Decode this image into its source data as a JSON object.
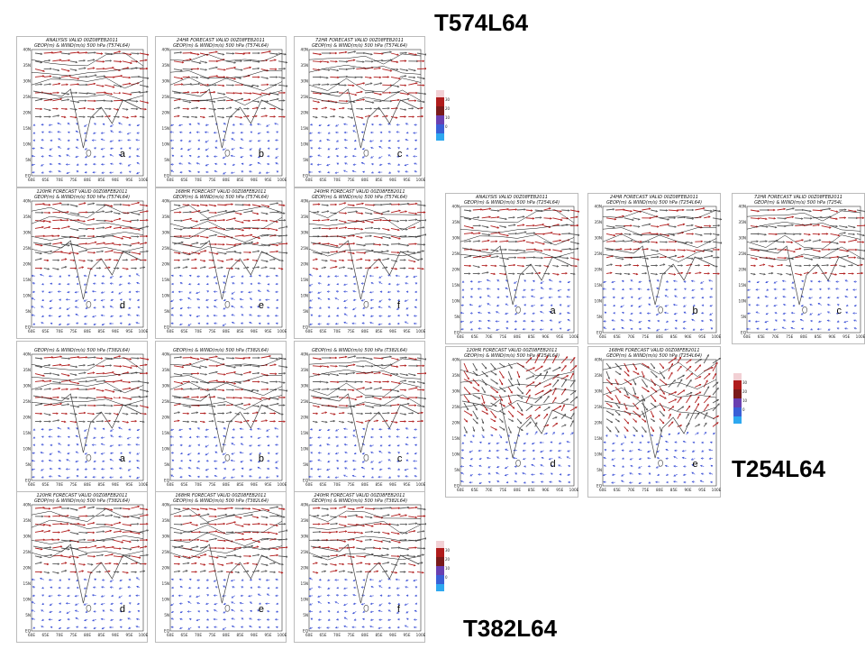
{
  "groups": {
    "t574": {
      "title": "T574L64",
      "panels": [
        {
          "title1": "ANALYSIS VALID 00Z08FEB2011",
          "title2": "GEOP(m) & WIND(m/s) 500 hPa (T574L64)",
          "label": "a"
        },
        {
          "title1": "24HR FORECAST VALID 00Z08FEB2011",
          "title2": "GEOP(m) & WIND(m/s) 500 hPa (T574L64)",
          "label": "b"
        },
        {
          "title1": "72HR FORECAST VALID 00Z08FEB2011",
          "title2": "GEOP(m) & WIND(m/s) 500 hPa (T574L64)",
          "label": "c"
        },
        {
          "title1": "120HR FORECAST VALID 00Z08FEB2011",
          "title2": "GEOP(m) & WIND(m/s) 500 hPa (T574L64)",
          "label": "d"
        },
        {
          "title1": "168HR FORECAST VALID 00Z08FEB2011",
          "title2": "GEOP(m) & WIND(m/s) 500 hPa (T574L64)",
          "label": "e"
        },
        {
          "title1": "240HR FORECAST VALID 00Z08FEB2011",
          "title2": "GEOP(m) & WIND(m/s) 500 hPa (T574L64)",
          "label": "f"
        }
      ]
    },
    "t382": {
      "title": "T382L64",
      "panels": [
        {
          "title1": "",
          "title2": "GEOP(m) & WIND(m/s) 500 hPa (T382L64)",
          "label": "a"
        },
        {
          "title1": "",
          "title2": "GEOP(m) & WIND(m/s) 500 hPa (T382L64)",
          "label": "b"
        },
        {
          "title1": "",
          "title2": "GEOP(m) & WIND(m/s) 500 hPa (T382L64)",
          "label": "c"
        },
        {
          "title1": "120HR FORECAST VALID 00Z08FEB2011",
          "title2": "GEOP(m) & WIND(m/s) 500 hPa (T382L64)",
          "label": "d"
        },
        {
          "title1": "168HR FORECAST VALID 00Z08FEB2011",
          "title2": "GEOP(m) & WIND(m/s) 500 hPa (T382L64)",
          "label": "e"
        },
        {
          "title1": "240HR FORECAST VALID 00Z08FEB2011",
          "title2": "GEOP(m) & WIND(m/s) 500 hPa (T382L64)",
          "label": "f"
        }
      ]
    },
    "t254": {
      "title": "T254L64",
      "panels": [
        {
          "title1": "ANALYSIS VALID 00Z08FEB2011",
          "title2": "GEOP(m) & WIND(m/s) 500 hPa (T254L64)",
          "label": "a"
        },
        {
          "title1": "24HR FORECAST VALID 00Z08FEB2011",
          "title2": "GEOP(m) & WIND(m/s) 500 hPa (T254L64)",
          "label": "b"
        },
        {
          "title1": "72HR FORECAST VALID 00Z08FEB2011",
          "title2": "GEOP(m) & WIND(m/s) 500 hPa (T254L",
          "label": "c"
        },
        {
          "title1": "120HR FORECAST VALID 00Z08FEB2011",
          "title2": "GEOP(m) & WIND(m/s) 500 hPa (T254L64)",
          "label": "d"
        },
        {
          "title1": "168HR FORECAST VALID 00Z08FEB2011",
          "title2": "GEOP(m) & WIND(m/s) 500 hPa (T254L64)",
          "label": "e"
        }
      ]
    }
  },
  "lat_ticks": [
    "40N",
    "35N",
    "30N",
    "25N",
    "20N",
    "15N",
    "10N",
    "5N",
    "EQ"
  ],
  "lon_ticks": [
    "60E",
    "65E",
    "70E",
    "75E",
    "80E",
    "85E",
    "90E",
    "95E",
    "100E"
  ],
  "colorbar_ticks": [
    "30",
    "20",
    "10",
    "0"
  ],
  "colors": {
    "strong_wind": "#b01c1c",
    "mid_wind": "#555555",
    "weak_wind": "#3a4fd6",
    "contour": "#111111",
    "colorbar": [
      "#f2d0d4",
      "#b01c1c",
      "#7a1a1a",
      "#6a3fb0",
      "#3a5fd6",
      "#2ea8f0"
    ]
  }
}
